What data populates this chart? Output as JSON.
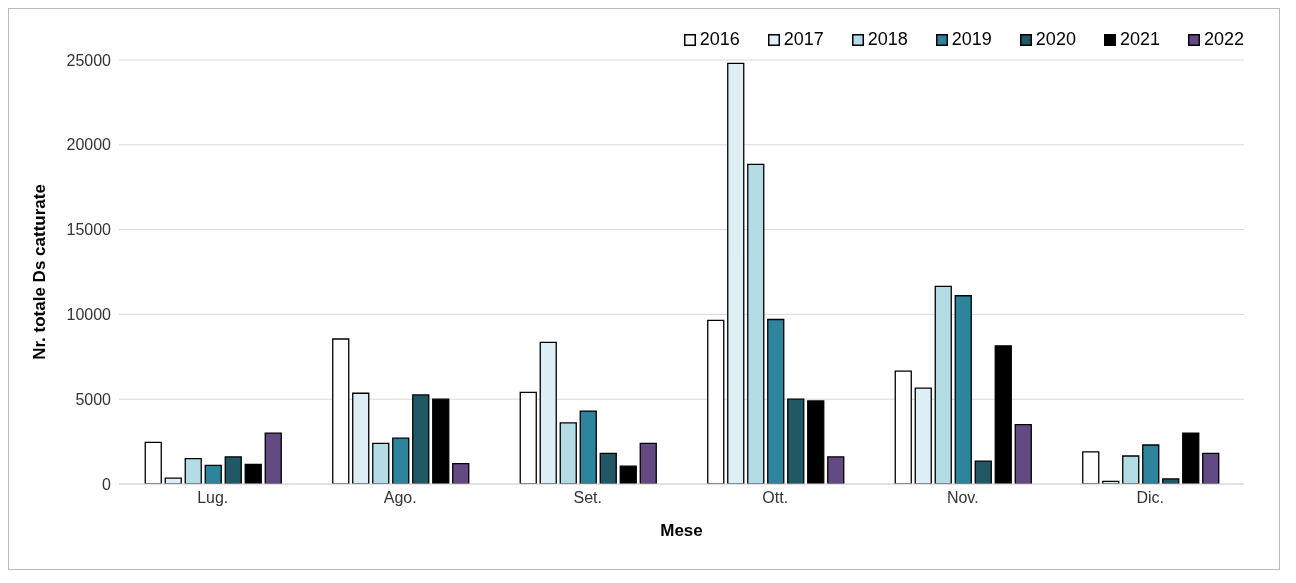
{
  "chart_data": {
    "type": "bar",
    "xlabel": "Mese",
    "ylabel": "Nr. totale Ds catturate",
    "categories": [
      "Lug.",
      "Ago.",
      "Set.",
      "Ott.",
      "Nov.",
      "Dic."
    ],
    "series": [
      {
        "name": "2016",
        "color": "#ffffff",
        "values": [
          2450,
          8550,
          5400,
          9650,
          6650,
          1900
        ]
      },
      {
        "name": "2017",
        "color": "#ddeef4",
        "values": [
          350,
          5350,
          8350,
          24800,
          5650,
          150
        ]
      },
      {
        "name": "2018",
        "color": "#b3dce5",
        "values": [
          1500,
          2400,
          3600,
          18850,
          11650,
          1650
        ]
      },
      {
        "name": "2019",
        "color": "#2e849c",
        "values": [
          1100,
          2700,
          4300,
          9700,
          11100,
          2300
        ]
      },
      {
        "name": "2020",
        "color": "#215866",
        "values": [
          1600,
          5250,
          1800,
          5000,
          1350,
          300
        ]
      },
      {
        "name": "2021",
        "color": "#000000",
        "values": [
          1150,
          5000,
          1050,
          4900,
          8150,
          3000
        ]
      },
      {
        "name": "2022",
        "color": "#644a82",
        "values": [
          3000,
          1200,
          2400,
          1600,
          3500,
          1800
        ]
      }
    ],
    "ylim": [
      0,
      25000
    ],
    "yticks": [
      0,
      5000,
      10000,
      15000,
      20000,
      25000
    ],
    "grid": "y",
    "legend": "top right"
  }
}
